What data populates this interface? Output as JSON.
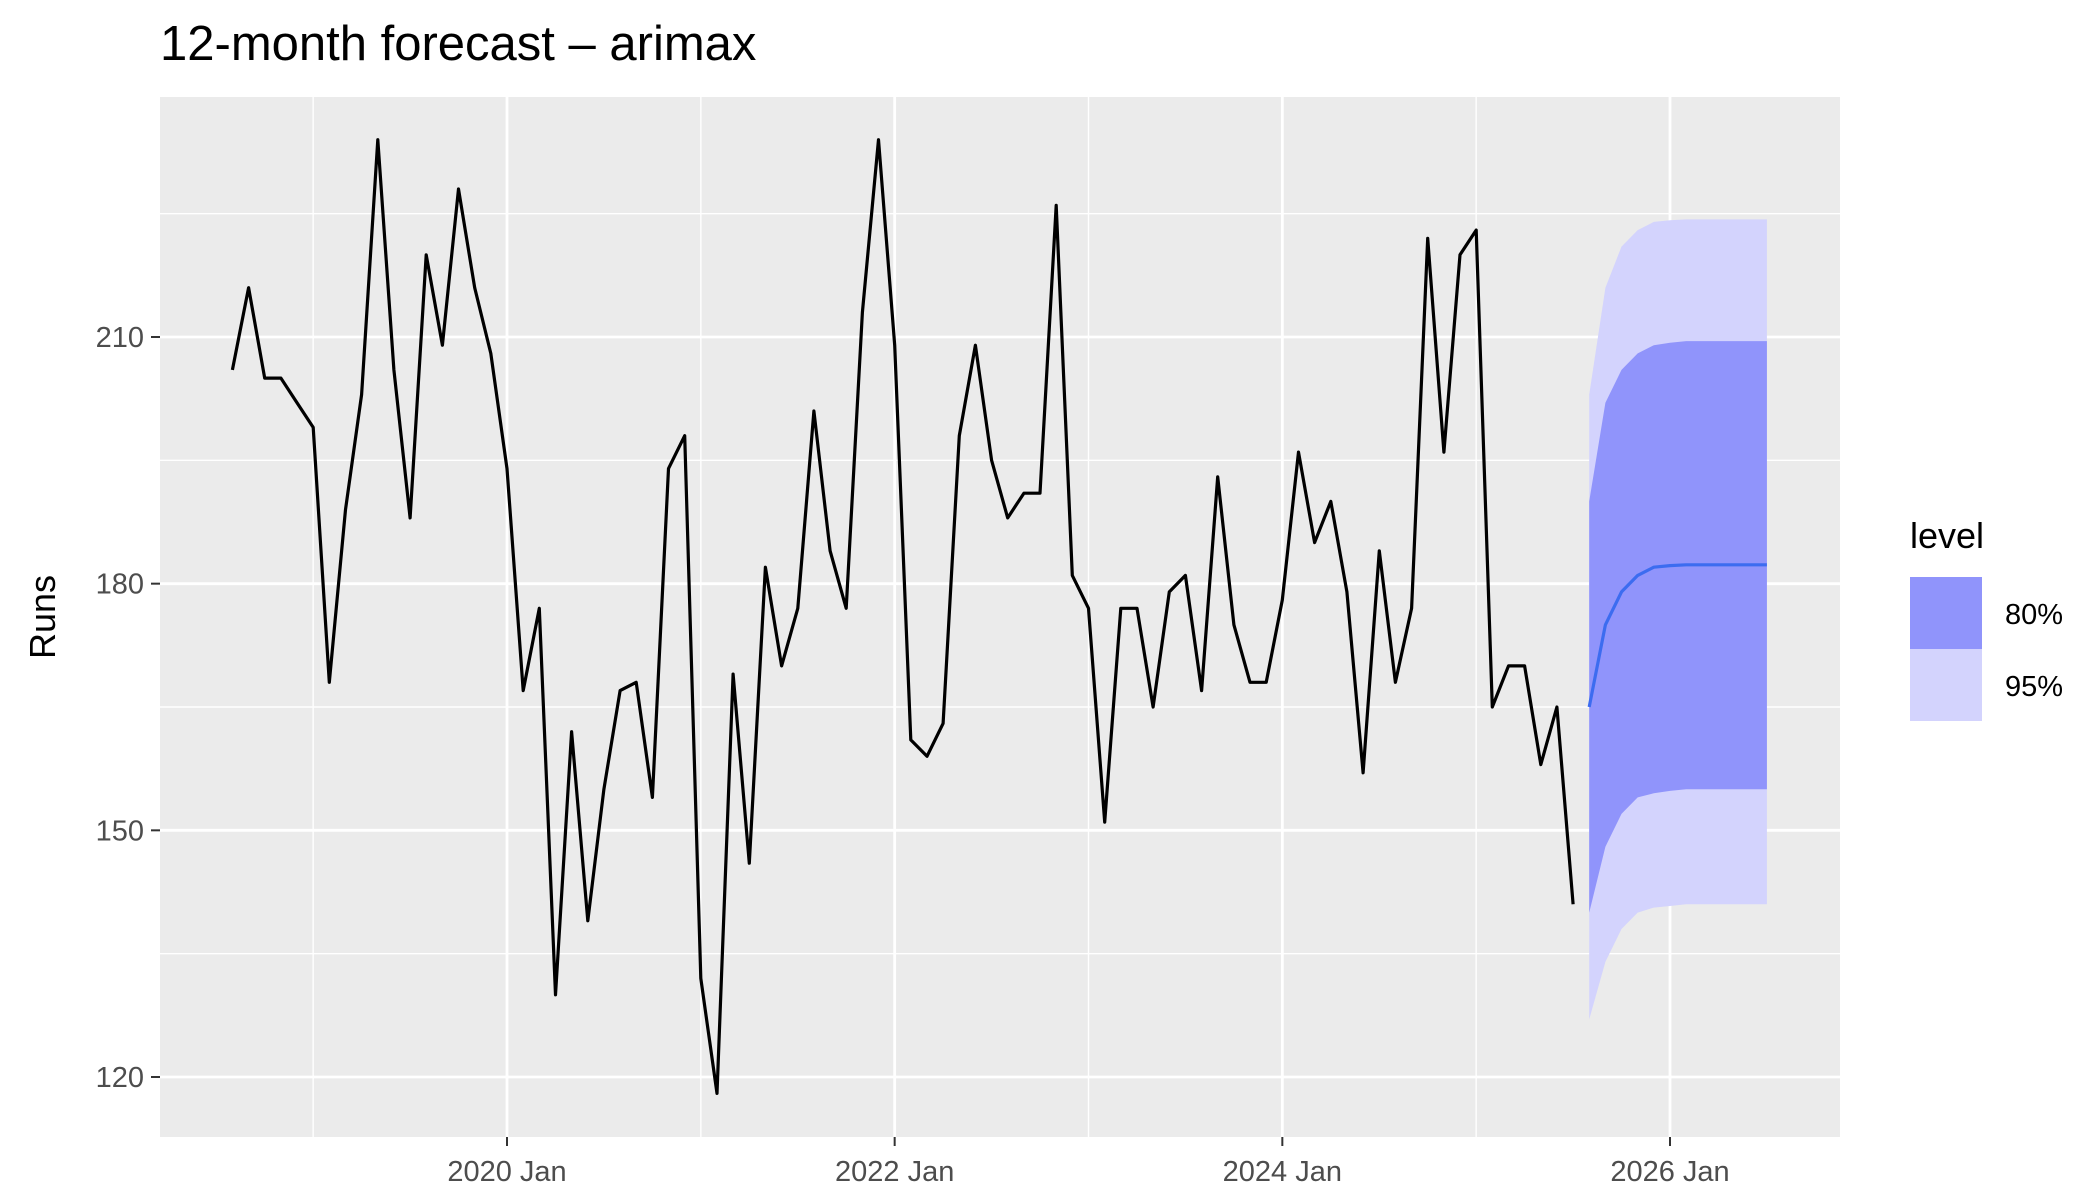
{
  "chart_data": {
    "type": "line",
    "title": "12-month forecast – arimax",
    "xlabel": "",
    "ylabel": "Runs",
    "x_ticks": [
      "2020 Jan",
      "2022 Jan",
      "2024 Jan",
      "2026 Jan"
    ],
    "y_ticks": [
      120,
      150,
      180,
      210
    ],
    "ylim": [
      116,
      241
    ],
    "grid": true,
    "legend": {
      "title": "level",
      "placement": "right",
      "items": [
        {
          "label": "80%",
          "color": "#9094fb"
        },
        {
          "label": "95%",
          "color": "#d3d3fd"
        }
      ]
    },
    "colors": {
      "panel_bg": "#ebebeb",
      "grid": "#ffffff",
      "history_line": "#000000",
      "forecast_line": "#3c6cf0",
      "band_80": "#9094fb",
      "band_95": "#d3d3fd"
    },
    "history": {
      "start": "2018-08",
      "values": [
        206,
        216,
        205,
        205,
        202,
        199,
        168,
        189,
        203,
        234,
        206,
        188,
        220,
        209,
        228,
        216,
        208,
        194,
        167,
        177,
        130,
        162,
        139,
        155,
        167,
        168,
        154,
        194,
        198,
        132,
        118,
        169,
        146,
        182,
        170,
        177,
        201,
        184,
        177,
        213,
        234,
        209,
        161,
        159,
        163,
        198,
        209,
        195,
        188,
        191,
        191,
        226,
        181,
        177,
        151,
        177,
        177,
        165,
        179,
        181,
        167,
        193,
        175,
        168,
        168,
        178,
        196,
        185,
        190,
        179,
        157,
        184,
        168,
        177,
        222,
        196,
        220,
        223,
        165,
        170,
        170,
        158,
        165,
        141
      ]
    },
    "forecast": {
      "start": "2025-08",
      "mean": [
        165,
        175,
        179,
        181,
        182,
        182.2,
        182.3,
        182.3,
        182.3,
        182.3,
        182.3,
        182.3
      ],
      "lo80": [
        140,
        148,
        152,
        154,
        154.5,
        154.8,
        155,
        155,
        155,
        155,
        155,
        155
      ],
      "hi80": [
        190,
        202,
        206,
        208,
        209,
        209.3,
        209.5,
        209.5,
        209.5,
        209.5,
        209.5,
        209.5
      ],
      "lo95": [
        127,
        134,
        138,
        140,
        140.6,
        140.8,
        141,
        141,
        141,
        141,
        141,
        141
      ],
      "hi95": [
        203,
        216,
        221,
        223,
        224,
        224.2,
        224.3,
        224.3,
        224.3,
        224.3,
        224.3,
        224.3
      ]
    }
  }
}
